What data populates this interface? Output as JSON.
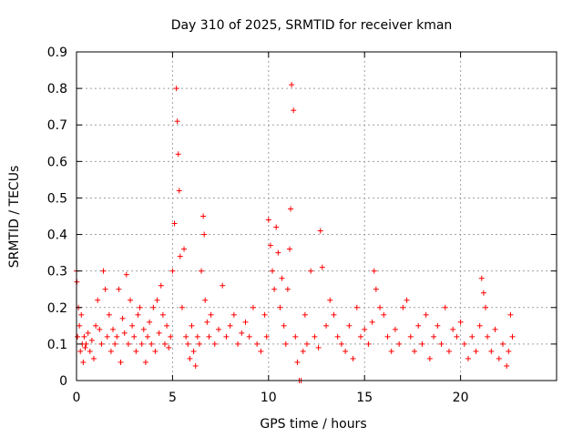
{
  "chart_data": {
    "type": "scatter",
    "title": "Day 310 of 2025, SRMTID for receiver kman",
    "xlabel": "GPS time / hours",
    "ylabel": "SRMTID / TECUs",
    "xlim": [
      0,
      25
    ],
    "ylim": [
      0,
      0.9
    ],
    "xticks": [
      0,
      5,
      10,
      15,
      20
    ],
    "xtick_labels": [
      "0",
      "5",
      "10",
      "15",
      "20"
    ],
    "yticks": [
      0,
      0.1,
      0.2,
      0.3,
      0.4,
      0.5,
      0.6,
      0.7,
      0.8,
      0.9
    ],
    "ytick_labels": [
      "0",
      "0.1",
      "0.2",
      "0.3",
      "0.4",
      "0.5",
      "0.6",
      "0.7",
      "0.8",
      "0.9"
    ],
    "grid": true,
    "marker": "+",
    "color": "#ff0000",
    "series": [
      {
        "name": "SRMTID",
        "x": [
          0.0,
          0.02,
          0.05,
          0.1,
          0.15,
          0.2,
          0.25,
          0.3,
          0.35,
          0.4,
          0.45,
          0.5,
          0.6,
          0.7,
          0.8,
          0.9,
          1.0,
          1.1,
          1.2,
          1.3,
          1.4,
          1.5,
          1.6,
          1.7,
          1.8,
          1.9,
          2.0,
          2.1,
          2.2,
          2.3,
          2.4,
          2.5,
          2.6,
          2.7,
          2.8,
          2.9,
          3.0,
          3.1,
          3.2,
          3.3,
          3.4,
          3.5,
          3.6,
          3.7,
          3.8,
          3.9,
          4.0,
          4.1,
          4.2,
          4.3,
          4.4,
          4.5,
          4.6,
          4.7,
          4.8,
          4.9,
          5.0,
          5.1,
          5.2,
          5.25,
          5.3,
          5.35,
          5.4,
          5.5,
          5.6,
          5.7,
          5.8,
          5.9,
          6.0,
          6.1,
          6.2,
          6.3,
          6.4,
          6.5,
          6.6,
          6.65,
          6.7,
          6.8,
          6.9,
          7.0,
          7.2,
          7.4,
          7.6,
          7.8,
          8.0,
          8.2,
          8.4,
          8.6,
          8.8,
          9.0,
          9.2,
          9.4,
          9.6,
          9.8,
          9.9,
          10.0,
          10.1,
          10.2,
          10.3,
          10.4,
          10.5,
          10.6,
          10.7,
          10.8,
          10.9,
          11.0,
          11.1,
          11.15,
          11.2,
          11.3,
          11.4,
          11.5,
          11.6,
          11.7,
          11.8,
          11.9,
          12.0,
          12.2,
          12.4,
          12.6,
          12.7,
          12.8,
          13.0,
          13.2,
          13.4,
          13.6,
          13.8,
          14.0,
          14.2,
          14.4,
          14.6,
          14.8,
          15.0,
          15.2,
          15.4,
          15.5,
          15.6,
          15.8,
          16.0,
          16.2,
          16.4,
          16.6,
          16.8,
          17.0,
          17.2,
          17.4,
          17.6,
          17.8,
          18.0,
          18.2,
          18.4,
          18.6,
          18.8,
          19.0,
          19.2,
          19.4,
          19.6,
          19.8,
          20.0,
          20.2,
          20.4,
          20.6,
          20.8,
          21.0,
          21.1,
          21.2,
          21.3,
          21.4,
          21.6,
          21.8,
          22.0,
          22.2,
          22.4,
          22.5,
          22.6,
          22.7
        ],
        "y": [
          0.3,
          0.27,
          0.12,
          0.2,
          0.15,
          0.08,
          0.18,
          0.1,
          0.05,
          0.12,
          0.09,
          0.1,
          0.13,
          0.08,
          0.11,
          0.06,
          0.15,
          0.22,
          0.14,
          0.1,
          0.3,
          0.25,
          0.12,
          0.18,
          0.08,
          0.14,
          0.1,
          0.12,
          0.25,
          0.05,
          0.17,
          0.13,
          0.29,
          0.1,
          0.22,
          0.15,
          0.12,
          0.08,
          0.18,
          0.2,
          0.1,
          0.14,
          0.05,
          0.12,
          0.16,
          0.1,
          0.2,
          0.08,
          0.22,
          0.13,
          0.26,
          0.18,
          0.1,
          0.15,
          0.09,
          0.12,
          0.3,
          0.43,
          0.8,
          0.71,
          0.62,
          0.52,
          0.34,
          0.2,
          0.36,
          0.12,
          0.1,
          0.06,
          0.15,
          0.08,
          0.04,
          0.12,
          0.1,
          0.3,
          0.45,
          0.4,
          0.22,
          0.16,
          0.12,
          0.18,
          0.1,
          0.14,
          0.26,
          0.12,
          0.15,
          0.18,
          0.1,
          0.13,
          0.16,
          0.12,
          0.2,
          0.1,
          0.08,
          0.18,
          0.12,
          0.44,
          0.37,
          0.3,
          0.25,
          0.42,
          0.35,
          0.2,
          0.28,
          0.15,
          0.1,
          0.25,
          0.36,
          0.47,
          0.81,
          0.74,
          0.12,
          0.05,
          0.0,
          0.0,
          0.08,
          0.18,
          0.1,
          0.3,
          0.12,
          0.09,
          0.41,
          0.31,
          0.15,
          0.22,
          0.18,
          0.12,
          0.1,
          0.08,
          0.15,
          0.06,
          0.2,
          0.12,
          0.14,
          0.1,
          0.16,
          0.3,
          0.25,
          0.2,
          0.18,
          0.12,
          0.08,
          0.14,
          0.1,
          0.2,
          0.22,
          0.12,
          0.08,
          0.15,
          0.1,
          0.18,
          0.06,
          0.12,
          0.15,
          0.1,
          0.2,
          0.08,
          0.14,
          0.12,
          0.16,
          0.1,
          0.06,
          0.12,
          0.08,
          0.15,
          0.28,
          0.24,
          0.2,
          0.12,
          0.08,
          0.14,
          0.06,
          0.1,
          0.04,
          0.08,
          0.18,
          0.12
        ]
      }
    ]
  }
}
